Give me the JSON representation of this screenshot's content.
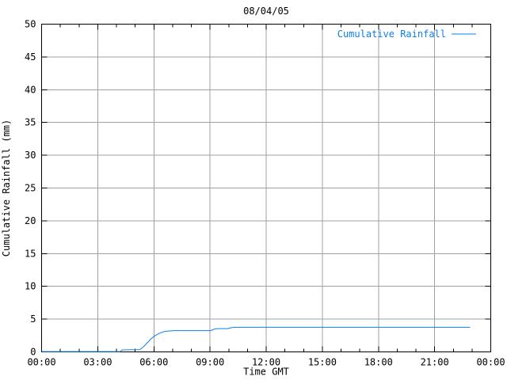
{
  "window": {
    "background": "#ffffff"
  },
  "chart_data": {
    "type": "line",
    "title": "08/04/05",
    "xlabel": "Time GMT",
    "ylabel": "Cumulative Rainfall (mm)",
    "xlim_hours": [
      0,
      24
    ],
    "ylim": [
      0,
      50
    ],
    "grid": true,
    "x_major_ticks_hours": [
      0,
      3,
      6,
      9,
      12,
      15,
      18,
      21,
      24
    ],
    "x_tick_labels": [
      "00:00",
      "03:00",
      "06:00",
      "09:00",
      "12:00",
      "15:00",
      "18:00",
      "21:00",
      "00:00"
    ],
    "x_minor_tick_interval_hours": 1,
    "y_major_ticks": [
      0,
      5,
      10,
      15,
      20,
      25,
      30,
      35,
      40,
      45,
      50
    ],
    "y_tick_labels": [
      "0",
      "5",
      "10",
      "15",
      "20",
      "25",
      "30",
      "35",
      "40",
      "45",
      "50"
    ],
    "legend": {
      "position": "top-right",
      "entries": [
        {
          "label": "Cumulative Rainfall",
          "color": "#0f7fe6"
        }
      ]
    },
    "series": [
      {
        "name": "Cumulative Rainfall",
        "color": "#0f7fe6",
        "points_time_mm": [
          [
            0.0,
            0.05
          ],
          [
            4.2,
            0.05
          ],
          [
            4.3,
            0.3
          ],
          [
            5.25,
            0.35
          ],
          [
            5.45,
            0.8
          ],
          [
            5.65,
            1.4
          ],
          [
            5.85,
            2.0
          ],
          [
            6.05,
            2.45
          ],
          [
            6.3,
            2.85
          ],
          [
            6.55,
            3.1
          ],
          [
            6.85,
            3.2
          ],
          [
            7.1,
            3.25
          ],
          [
            9.05,
            3.25
          ],
          [
            9.2,
            3.45
          ],
          [
            9.4,
            3.55
          ],
          [
            9.95,
            3.55
          ],
          [
            10.15,
            3.7
          ],
          [
            10.35,
            3.75
          ],
          [
            22.9,
            3.75
          ]
        ]
      }
    ],
    "colors": {
      "background": "#ffffff",
      "border": "#000000",
      "grid": "#a0a0a0",
      "text": "#000000"
    }
  }
}
